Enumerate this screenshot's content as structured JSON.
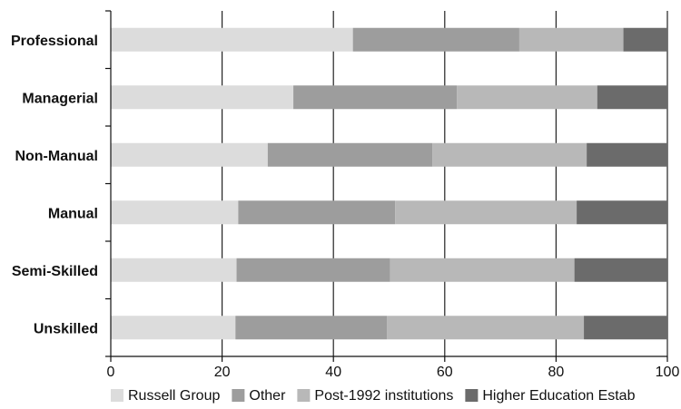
{
  "chart_data": {
    "type": "bar",
    "orientation": "horizontal",
    "stacked": true,
    "categories": [
      "Professional",
      "Managerial",
      "Non-Manual",
      "Manual",
      "Semi-Skilled",
      "Unskilled"
    ],
    "series": [
      {
        "name": "Russell Group",
        "color": "#dcdcdc",
        "values": [
          43.5,
          32.8,
          28.2,
          22.9,
          22.6,
          22.4
        ]
      },
      {
        "name": "Other",
        "color": "#9d9d9d",
        "values": [
          29.9,
          29.4,
          29.6,
          28.2,
          27.6,
          27.2
        ]
      },
      {
        "name": "Post-1992 institutions",
        "color": "#b8b8b8",
        "values": [
          18.7,
          25.2,
          27.7,
          32.6,
          33.1,
          35.4
        ]
      },
      {
        "name": "Higher Education Estab",
        "color": "#6b6b6b",
        "values": [
          7.9,
          12.6,
          14.5,
          16.3,
          16.7,
          15.0
        ]
      }
    ],
    "xlim": [
      0,
      100
    ],
    "xticks": [
      0,
      20,
      40,
      60,
      80,
      100
    ],
    "grid": "vertical",
    "legend": "bottom"
  }
}
